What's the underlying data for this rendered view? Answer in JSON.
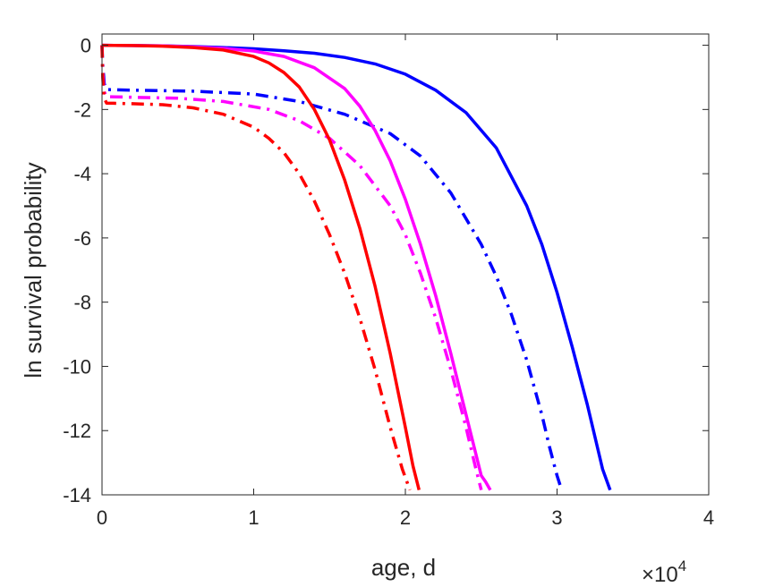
{
  "chart_data": {
    "type": "line",
    "title": "",
    "xlabel": "age, d",
    "ylabel": "ln survival probability",
    "x_multiplier": {
      "base": "×10",
      "exponent": "4"
    },
    "xlim": [
      0,
      40000
    ],
    "ylim": [
      -14,
      0.35
    ],
    "xticks": [
      0,
      10000,
      20000,
      30000,
      40000
    ],
    "xtick_labels": [
      "0",
      "1",
      "2",
      "3",
      "4"
    ],
    "yticks": [
      0,
      -2,
      -4,
      -6,
      -8,
      -10,
      -12,
      -14
    ],
    "ytick_labels": [
      "0",
      "-2",
      "-4",
      "-6",
      "-8",
      "-10",
      "-12",
      "-14"
    ],
    "grid": false,
    "legend": "none",
    "series": [
      {
        "color": "#0000ff",
        "style": "solid",
        "x": [
          0,
          2000,
          4000,
          6000,
          8000,
          10000,
          12000,
          14000,
          16000,
          18000,
          20000,
          22000,
          24000,
          26000,
          28000,
          29000,
          30000,
          31000,
          32000,
          33000,
          33500
        ],
        "y": [
          0,
          -0.01,
          -0.02,
          -0.04,
          -0.07,
          -0.11,
          -0.17,
          -0.25,
          -0.38,
          -0.58,
          -0.9,
          -1.4,
          -2.1,
          -3.2,
          -5.0,
          -6.2,
          -7.7,
          -9.4,
          -11.2,
          -13.2,
          -13.85
        ]
      },
      {
        "color": "#0000ff",
        "style": "dashdot",
        "x": [
          0,
          50,
          150,
          300,
          2000,
          6000,
          10000,
          13000,
          16000,
          19000,
          21000,
          23000,
          25000,
          26000,
          27000,
          28000,
          29000,
          29500,
          30000,
          30300
        ],
        "y": [
          0,
          -0.6,
          -1.2,
          -1.38,
          -1.4,
          -1.43,
          -1.52,
          -1.75,
          -2.15,
          -2.75,
          -3.45,
          -4.6,
          -6.2,
          -7.2,
          -8.4,
          -9.8,
          -11.5,
          -12.5,
          -13.4,
          -13.85
        ]
      },
      {
        "color": "#ff00ff",
        "style": "solid",
        "x": [
          0,
          2000,
          4000,
          6000,
          8000,
          10000,
          12000,
          14000,
          16000,
          17000,
          18000,
          19000,
          20000,
          21000,
          22000,
          23000,
          24000,
          25000,
          25300,
          25600
        ],
        "y": [
          0,
          -0.01,
          -0.02,
          -0.05,
          -0.1,
          -0.18,
          -0.35,
          -0.7,
          -1.35,
          -1.9,
          -2.65,
          -3.6,
          -4.8,
          -6.2,
          -7.8,
          -9.6,
          -11.5,
          -13.4,
          -13.6,
          -13.85
        ]
      },
      {
        "color": "#ff00ff",
        "style": "dashdot",
        "x": [
          0,
          50,
          150,
          300,
          2000,
          5000,
          8000,
          11000,
          13000,
          15000,
          17000,
          19000,
          20000,
          21000,
          22000,
          23000,
          24000,
          24600,
          25000
        ],
        "y": [
          0,
          -0.8,
          -1.45,
          -1.6,
          -1.62,
          -1.65,
          -1.75,
          -2.0,
          -2.35,
          -2.9,
          -3.75,
          -5.0,
          -5.9,
          -7.1,
          -8.5,
          -10.1,
          -11.9,
          -13.1,
          -13.85
        ]
      },
      {
        "color": "#ff0000",
        "style": "solid",
        "x": [
          0,
          2000,
          4000,
          6000,
          8000,
          10000,
          11000,
          12000,
          13000,
          14000,
          15000,
          16000,
          17000,
          18000,
          19000,
          20000,
          20500,
          20900
        ],
        "y": [
          0,
          -0.01,
          -0.03,
          -0.07,
          -0.15,
          -0.35,
          -0.55,
          -0.85,
          -1.3,
          -2.0,
          -2.95,
          -4.2,
          -5.7,
          -7.5,
          -9.6,
          -11.9,
          -13.1,
          -13.85
        ]
      },
      {
        "color": "#ff0000",
        "style": "dashdot",
        "x": [
          0,
          50,
          150,
          300,
          2000,
          4000,
          6000,
          8000,
          10000,
          11000,
          12000,
          13000,
          14000,
          15000,
          16000,
          17000,
          18000,
          19000,
          19800,
          20300
        ],
        "y": [
          0,
          -1.0,
          -1.65,
          -1.8,
          -1.82,
          -1.85,
          -1.95,
          -2.15,
          -2.55,
          -2.9,
          -3.35,
          -4.0,
          -4.85,
          -5.9,
          -7.1,
          -8.5,
          -10.1,
          -11.9,
          -13.2,
          -13.85
        ]
      }
    ]
  }
}
